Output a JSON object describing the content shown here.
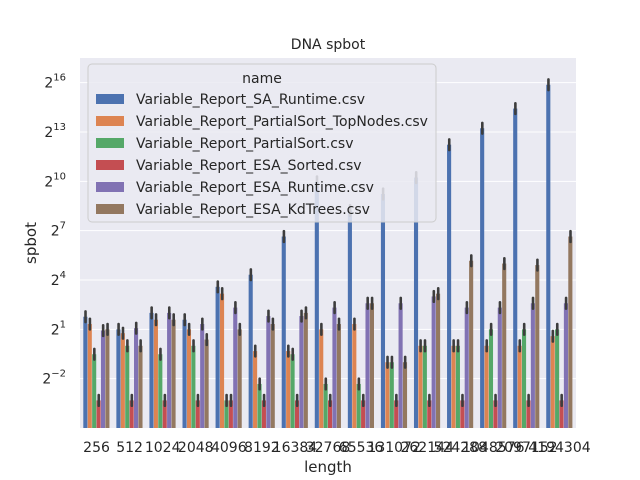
{
  "chart_data": {
    "type": "bar",
    "title": "DNA spbot",
    "xlabel": "length",
    "ylabel": "spbot",
    "yscale": "log2",
    "ylim_exp": [
      -5,
      17.5
    ],
    "yticks_exp": [
      -2,
      1,
      4,
      7,
      10,
      13,
      16
    ],
    "grid": true,
    "legend": {
      "title": "name",
      "position": "upper-left"
    },
    "categories": [
      "256",
      "512",
      "1024",
      "2048",
      "4096",
      "8192",
      "16384",
      "32768",
      "65536",
      "131072",
      "262144",
      "524288",
      "1048576",
      "2097152",
      "4194304"
    ],
    "series": [
      {
        "name": "Variable_Report_SA_Runtime.csv",
        "color": "#4c72b0",
        "values": [
          3.4,
          2.0,
          4.0,
          3.0,
          12.0,
          20.0,
          100.0,
          1000.0,
          300.0,
          600.0,
          1200.0,
          4800.0,
          9600.0,
          22000.0,
          60000.0
        ]
      },
      {
        "name": "Variable_Report_PartialSort_TopNodes.csv",
        "color": "#dd8452",
        "values": [
          2.5,
          1.7,
          3.0,
          2.0,
          9.0,
          0.8,
          0.8,
          2.0,
          2.5,
          0.5,
          1.0,
          1.0,
          1.0,
          1.0,
          1.5
        ]
      },
      {
        "name": "Variable_Report_PartialSort.csv",
        "color": "#55a868",
        "values": [
          0.7,
          1.0,
          0.7,
          1.0,
          0.1,
          0.2,
          0.7,
          0.2,
          0.2,
          0.5,
          1.0,
          1.0,
          2.0,
          2.0,
          2.0
        ]
      },
      {
        "name": "Variable_Report_ESA_Sorted.csv",
        "color": "#c44e52",
        "values": [
          0.1,
          0.1,
          0.1,
          0.1,
          0.1,
          0.1,
          0.1,
          0.1,
          0.1,
          0.1,
          0.1,
          0.1,
          0.1,
          0.1,
          0.1
        ]
      },
      {
        "name": "Variable_Report_ESA_Runtime.csv",
        "color": "#8172b3",
        "values": [
          1.9,
          2.1,
          4.0,
          2.5,
          5.0,
          3.5,
          3.5,
          5.0,
          6.0,
          6.0,
          8.0,
          5.0,
          5.0,
          6.0,
          6.0
        ]
      },
      {
        "name": "Variable_Report_ESA_KdTrees.csv",
        "color": "#937860",
        "values": [
          2.0,
          1.0,
          3.0,
          1.3,
          2.0,
          2.5,
          4.0,
          2.5,
          6.0,
          0.5,
          9.0,
          36.0,
          32.0,
          30.0,
          100.0
        ]
      }
    ]
  }
}
